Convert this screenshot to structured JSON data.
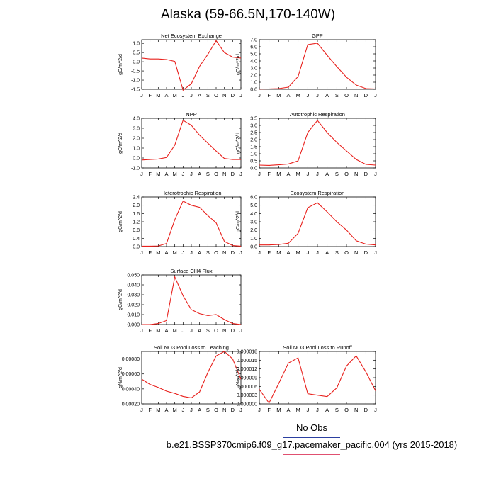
{
  "title": "Alaska (59-66.5N,170-140W)",
  "legend_text": "No Obs",
  "footer": "b.e21.BSSP370cmip6.f09_g17.pacemaker_pacific.004 (yrs 2015-2018)",
  "line_color": "#e8201c",
  "chart_data": [
    {
      "type": "line",
      "title": "Net Ecosystem Exchange",
      "ylabel": "gC/m^2/d",
      "ylim": [
        -1.5,
        1.2
      ],
      "yticks": [
        "-1.5",
        "-1.0",
        "-0.5",
        "0.0",
        "0.5",
        "1.0"
      ],
      "x": [
        "J",
        "F",
        "M",
        "A",
        "M",
        "J",
        "J",
        "A",
        "S",
        "O",
        "N",
        "D",
        "J"
      ],
      "values": [
        0.2,
        0.15,
        0.15,
        0.12,
        0.02,
        -1.55,
        -1.2,
        -0.25,
        0.4,
        1.15,
        0.5,
        0.25,
        0.2
      ]
    },
    {
      "type": "line",
      "title": "GPP",
      "ylabel": "gC/m^2/d",
      "ylim": [
        0.0,
        7.0
      ],
      "yticks": [
        "0.0",
        "1.0",
        "2.0",
        "3.0",
        "4.0",
        "5.0",
        "6.0",
        "7.0"
      ],
      "x": [
        "J",
        "F",
        "M",
        "A",
        "M",
        "J",
        "J",
        "A",
        "S",
        "O",
        "N",
        "D",
        "J"
      ],
      "values": [
        0.03,
        0.05,
        0.1,
        0.3,
        1.8,
        6.3,
        6.5,
        4.8,
        3.2,
        1.7,
        0.6,
        0.1,
        0.05
      ]
    },
    {
      "type": "line",
      "title": "NPP",
      "ylabel": "gC/m^2/d",
      "ylim": [
        -1.0,
        4.0
      ],
      "yticks": [
        "-1.0",
        "0.0",
        "1.0",
        "2.0",
        "3.0",
        "4.0"
      ],
      "x": [
        "J",
        "F",
        "M",
        "A",
        "M",
        "J",
        "J",
        "A",
        "S",
        "O",
        "N",
        "D",
        "J"
      ],
      "values": [
        -0.2,
        -0.15,
        -0.1,
        0.05,
        1.3,
        3.8,
        3.3,
        2.3,
        1.5,
        0.7,
        -0.05,
        -0.15,
        -0.15
      ]
    },
    {
      "type": "line",
      "title": "Autotrophic Respiration",
      "ylabel": "gC/m^2/d",
      "ylim": [
        0.0,
        3.5
      ],
      "yticks": [
        "0.0",
        "0.5",
        "1.0",
        "1.5",
        "2.0",
        "2.5",
        "3.0",
        "3.5"
      ],
      "x": [
        "J",
        "F",
        "M",
        "A",
        "M",
        "J",
        "J",
        "A",
        "S",
        "O",
        "N",
        "D",
        "J"
      ],
      "values": [
        0.2,
        0.18,
        0.22,
        0.28,
        0.5,
        2.5,
        3.35,
        2.5,
        1.8,
        1.2,
        0.6,
        0.25,
        0.2
      ]
    },
    {
      "type": "line",
      "title": "Heterotrophic Respiration",
      "ylabel": "gC/m^2/d",
      "ylim": [
        0.0,
        2.4
      ],
      "yticks": [
        "0.0",
        "0.4",
        "0.8",
        "1.2",
        "1.6",
        "2.0",
        "2.4"
      ],
      "x": [
        "J",
        "F",
        "M",
        "A",
        "M",
        "J",
        "J",
        "A",
        "S",
        "O",
        "N",
        "D",
        "J"
      ],
      "values": [
        0.02,
        0.02,
        0.03,
        0.15,
        1.3,
        2.2,
        2.0,
        1.9,
        1.5,
        1.15,
        0.25,
        0.05,
        0.02
      ]
    },
    {
      "type": "line",
      "title": "Ecosystem Respiration",
      "ylabel": "gC/m^2/d",
      "ylim": [
        0.0,
        6.0
      ],
      "yticks": [
        "0.0",
        "1.0",
        "2.0",
        "3.0",
        "4.0",
        "5.0",
        "6.0"
      ],
      "x": [
        "J",
        "F",
        "M",
        "A",
        "M",
        "J",
        "J",
        "A",
        "S",
        "O",
        "N",
        "D",
        "J"
      ],
      "values": [
        0.2,
        0.2,
        0.25,
        0.4,
        1.6,
        4.7,
        5.3,
        4.2,
        3.0,
        2.0,
        0.7,
        0.3,
        0.2
      ]
    },
    {
      "type": "line",
      "title": "Surface CH4 Flux",
      "ylabel": "gC/m^2/d",
      "ylim": [
        0.0,
        0.05
      ],
      "yticks": [
        "0.000",
        "0.010",
        "0.020",
        "0.030",
        "0.040",
        "0.050"
      ],
      "x": [
        "J",
        "F",
        "M",
        "A",
        "M",
        "J",
        "J",
        "A",
        "S",
        "O",
        "N",
        "D",
        "J"
      ],
      "values": [
        0.0,
        0.0,
        0.001,
        0.004,
        0.048,
        0.029,
        0.015,
        0.011,
        0.009,
        0.01,
        0.005,
        0.001,
        0.0
      ]
    },
    {
      "type": "line",
      "title": "Soil NO3 Pool Loss to Leaching",
      "ylabel": "gN/m^2/d",
      "ylim": [
        0.0002,
        0.0009
      ],
      "yticks": [
        "0.00020",
        "0.00040",
        "0.00060",
        "0.00080"
      ],
      "x": [
        "J",
        "F",
        "M",
        "A",
        "M",
        "J",
        "J",
        "A",
        "S",
        "O",
        "N",
        "D",
        "J"
      ],
      "values": [
        0.00053,
        0.00046,
        0.00042,
        0.00037,
        0.00034,
        0.0003,
        0.00028,
        0.00036,
        0.00062,
        0.00084,
        0.0009,
        0.0008,
        0.00053
      ]
    },
    {
      "type": "line",
      "title": "Soil NO3 Pool Loss to Runoff",
      "ylabel": "gN/m^2/d",
      "ylim": [
        0.0,
        1.8e-05
      ],
      "yticks": [
        "0.000000",
        "0.000003",
        "0.000006",
        "0.000009",
        "0.000012",
        "0.000015",
        "0.000018"
      ],
      "x": [
        "J",
        "F",
        "M",
        "A",
        "M",
        "J",
        "J",
        "A",
        "S",
        "O",
        "N",
        "D",
        "J"
      ],
      "values": [
        5e-06,
        3e-07,
        7e-06,
        1.4e-05,
        1.58e-05,
        3.5e-06,
        3e-06,
        2.5e-06,
        5.5e-06,
        1.3e-05,
        1.65e-05,
        1.1e-05,
        4.5e-06
      ]
    }
  ]
}
